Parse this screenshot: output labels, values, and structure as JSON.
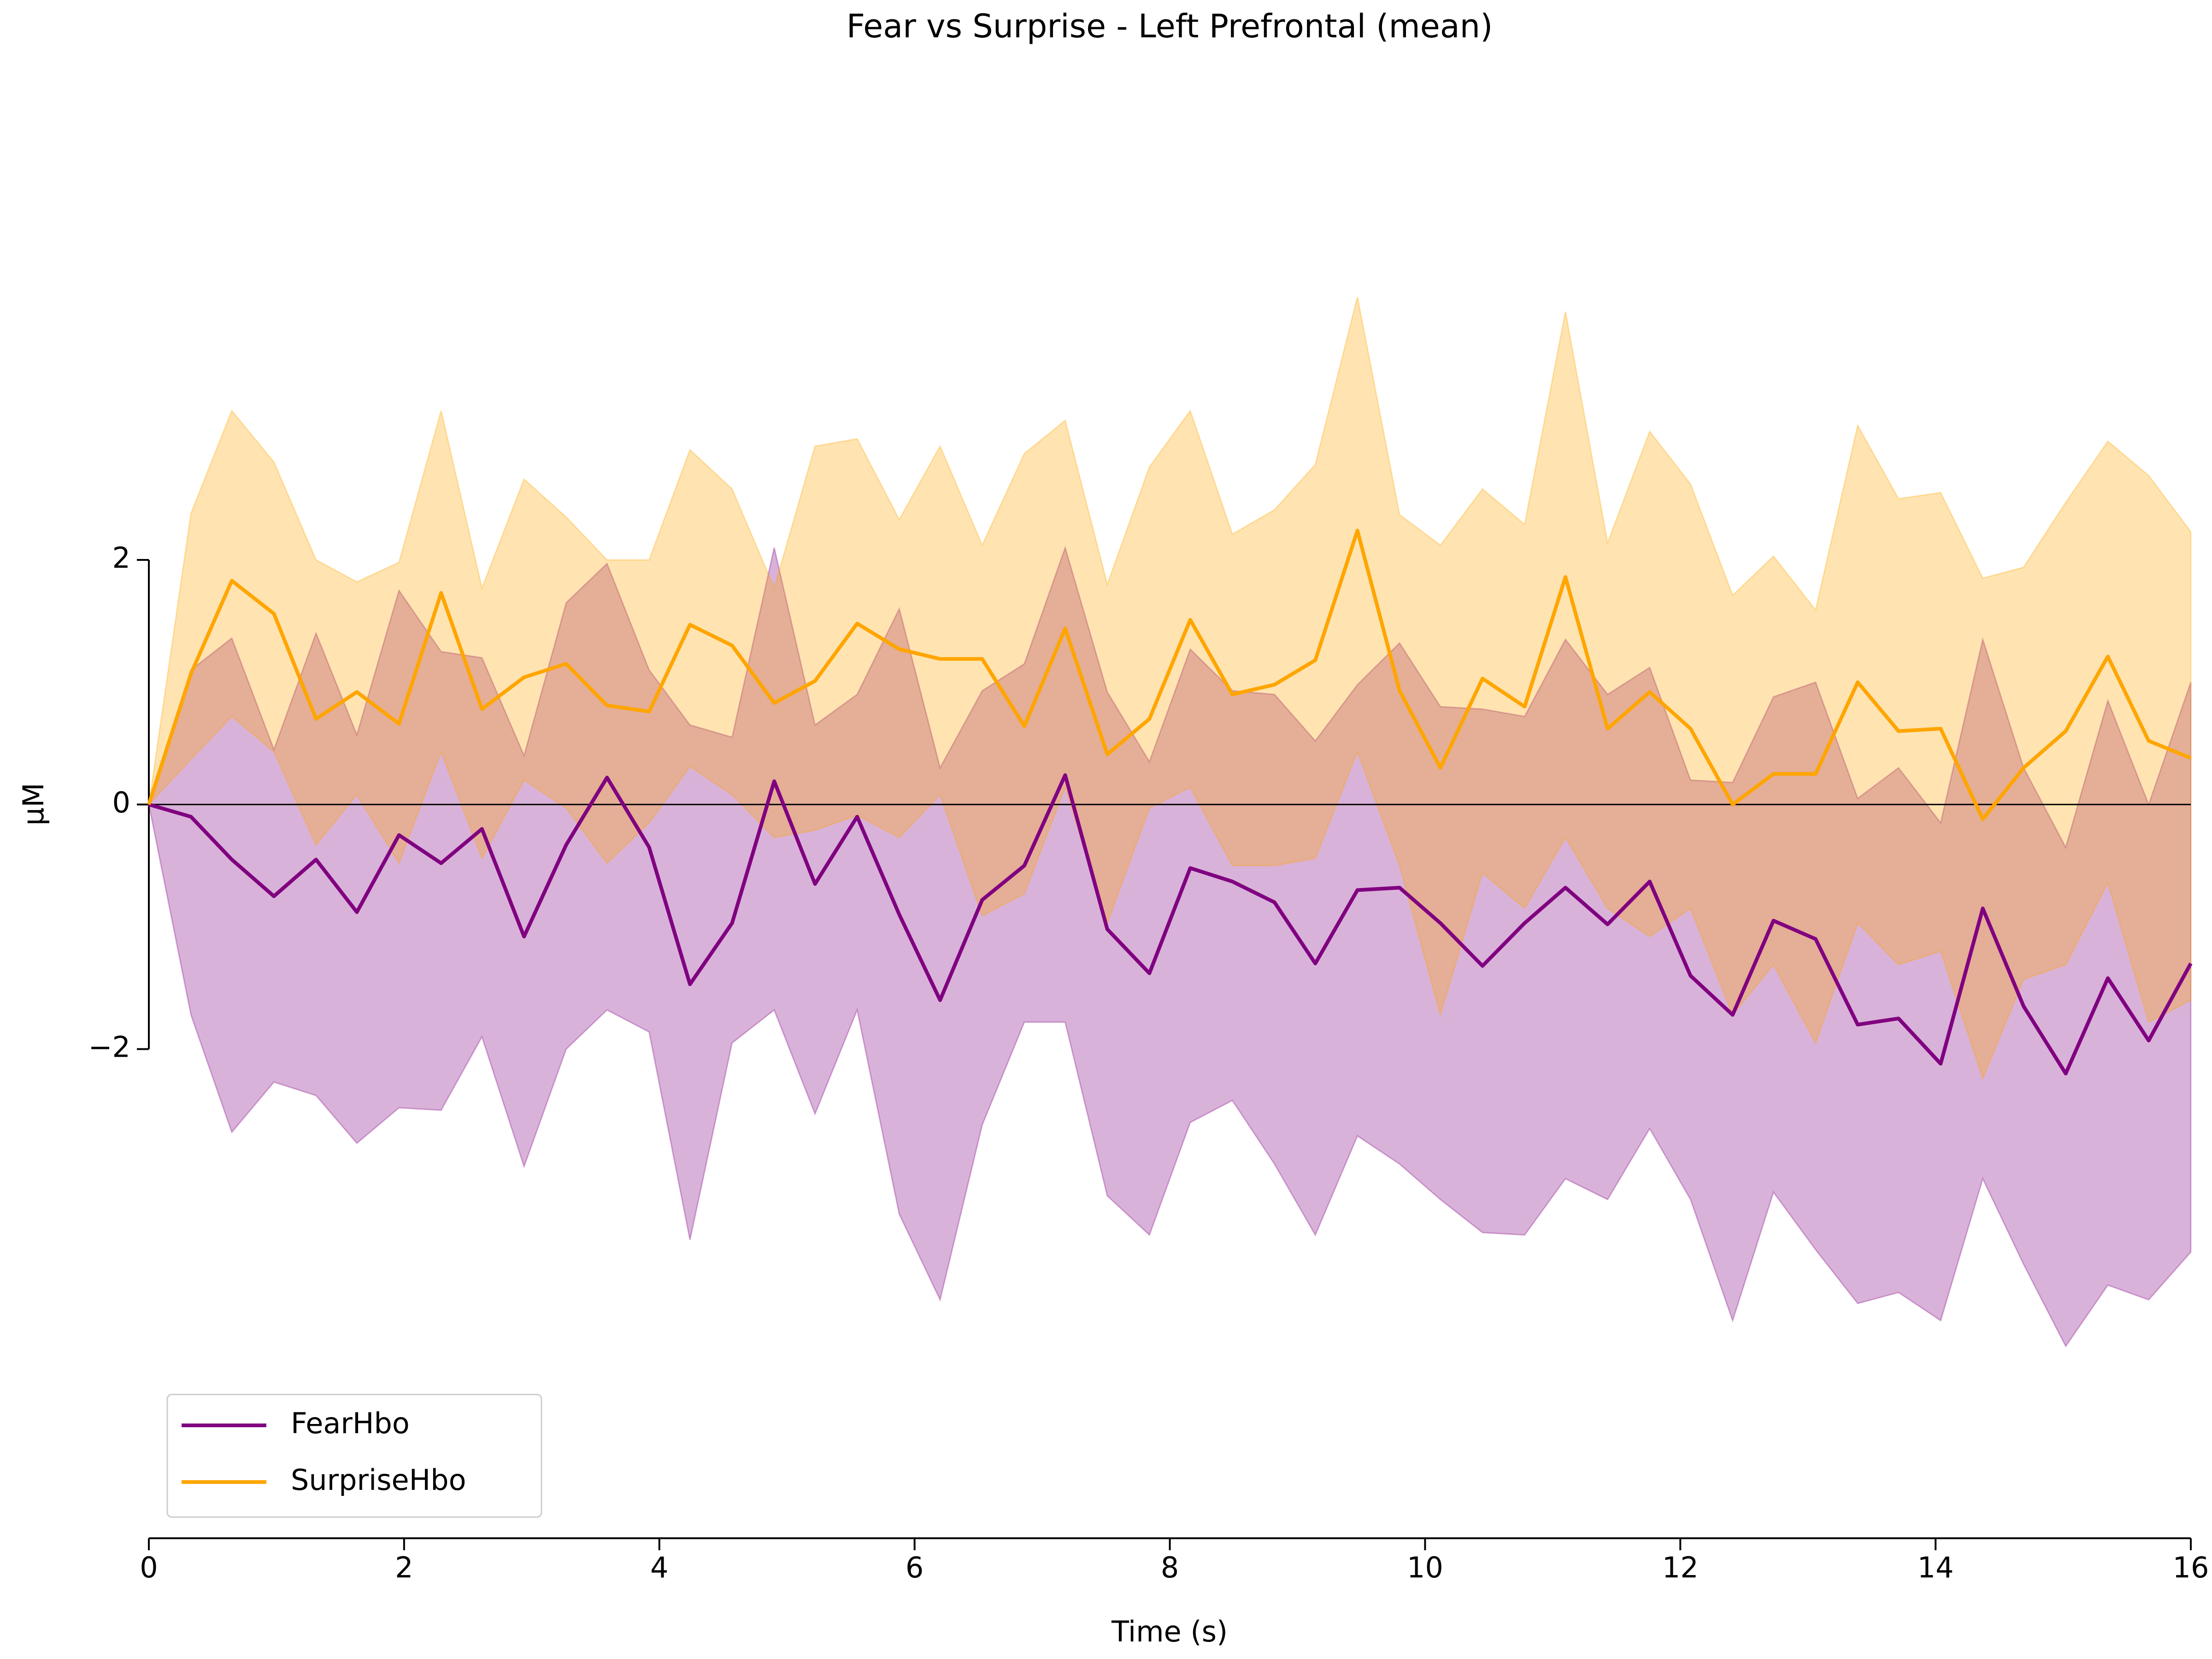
{
  "chart_data": {
    "type": "line",
    "title": "Fear vs Surprise - Left Prefrontal (mean)",
    "xlabel": "Time (s)",
    "ylabel": "μM",
    "x": [
      0,
      0.33,
      0.65,
      0.98,
      1.31,
      1.63,
      1.96,
      2.29,
      2.61,
      2.94,
      3.27,
      3.59,
      3.92,
      4.24,
      4.57,
      4.9,
      5.22,
      5.55,
      5.88,
      6.2,
      6.53,
      6.86,
      7.18,
      7.51,
      7.84,
      8.16,
      8.49,
      8.82,
      9.14,
      9.47,
      9.8,
      10.12,
      10.45,
      10.78,
      11.1,
      11.43,
      11.76,
      12.08,
      12.41,
      12.73,
      13.06,
      13.39,
      13.71,
      14.04,
      14.37,
      14.69,
      15.02,
      15.35,
      15.67,
      16.0
    ],
    "series": [
      {
        "name": "FearHbo",
        "color": "#800080",
        "values": [
          0,
          -0.1,
          -0.45,
          -0.75,
          -0.45,
          -0.88,
          -0.25,
          -0.48,
          -0.2,
          -1.08,
          -0.33,
          0.22,
          -0.35,
          -1.47,
          -0.97,
          0.19,
          -0.65,
          -0.1,
          -0.9,
          -1.6,
          -0.78,
          -0.5,
          0.24,
          -1.02,
          -1.38,
          -0.52,
          -0.63,
          -0.8,
          -1.3,
          -0.7,
          -0.68,
          -0.97,
          -1.32,
          -0.97,
          -0.68,
          -0.98,
          -0.63,
          -1.4,
          -1.72,
          -0.95,
          -1.1,
          -1.8,
          -1.75,
          -2.12,
          -0.85,
          -1.65,
          -2.2,
          -1.42,
          -1.93,
          -1.3
        ],
        "upper": [
          0,
          1.1,
          1.36,
          0.45,
          1.4,
          0.57,
          1.75,
          1.25,
          1.2,
          0.4,
          1.65,
          1.97,
          1.1,
          0.65,
          0.55,
          2.1,
          0.65,
          0.9,
          1.6,
          0.3,
          0.93,
          1.15,
          2.1,
          0.92,
          0.35,
          1.27,
          0.93,
          0.9,
          0.52,
          0.98,
          1.32,
          0.8,
          0.78,
          0.72,
          1.35,
          0.9,
          1.12,
          0.2,
          0.18,
          0.88,
          1.0,
          0.05,
          0.3,
          -0.15,
          1.35,
          0.3,
          -0.35,
          0.85,
          0.0,
          1.0
        ],
        "lower": [
          0,
          -1.72,
          -2.68,
          -2.27,
          -2.38,
          -2.77,
          -2.48,
          -2.5,
          -1.9,
          -2.96,
          -2.0,
          -1.68,
          -1.86,
          -3.56,
          -1.95,
          -1.68,
          -2.53,
          -1.68,
          -3.35,
          -4.05,
          -2.62,
          -1.78,
          -1.78,
          -3.2,
          -3.52,
          -2.6,
          -2.42,
          -2.94,
          -3.52,
          -2.71,
          -2.94,
          -3.23,
          -3.5,
          -3.52,
          -3.06,
          -3.23,
          -2.65,
          -3.23,
          -4.22,
          -3.17,
          -3.64,
          -4.08,
          -3.99,
          -4.22,
          -3.06,
          -3.76,
          -4.43,
          -3.93,
          -4.05,
          -3.66
        ]
      },
      {
        "name": "SurpriseHbo",
        "color": "#ffa500",
        "values": [
          0,
          1.07,
          1.83,
          1.56,
          0.7,
          0.92,
          0.66,
          1.73,
          0.78,
          1.04,
          1.15,
          0.81,
          0.76,
          1.47,
          1.3,
          0.83,
          1.01,
          1.48,
          1.27,
          1.19,
          1.19,
          0.64,
          1.44,
          0.41,
          0.7,
          1.51,
          0.9,
          0.98,
          1.18,
          2.24,
          0.93,
          0.3,
          1.03,
          0.8,
          1.86,
          0.62,
          0.92,
          0.62,
          0.0,
          0.25,
          0.25,
          1.0,
          0.6,
          0.62,
          -0.12,
          0.3,
          0.6,
          1.21,
          0.52,
          0.38
        ],
        "upper": [
          0,
          2.38,
          3.22,
          2.8,
          2.0,
          1.82,
          1.98,
          3.22,
          1.77,
          2.66,
          2.35,
          2.0,
          2.0,
          2.9,
          2.58,
          1.77,
          2.93,
          2.99,
          2.33,
          2.93,
          2.12,
          2.87,
          3.14,
          1.8,
          2.76,
          3.22,
          2.21,
          2.41,
          2.78,
          4.15,
          2.37,
          2.12,
          2.58,
          2.29,
          4.03,
          2.14,
          3.05,
          2.62,
          1.71,
          2.03,
          1.59,
          3.1,
          2.5,
          2.55,
          1.85,
          1.94,
          2.47,
          2.97,
          2.69,
          2.23
        ],
        "lower": [
          0,
          0.37,
          0.72,
          0.43,
          -0.33,
          0.08,
          -0.48,
          0.43,
          -0.44,
          0.2,
          -0.03,
          -0.48,
          -0.15,
          0.31,
          0.08,
          -0.27,
          -0.21,
          -0.09,
          -0.27,
          0.08,
          -0.91,
          -0.73,
          0.14,
          -0.97,
          -0.03,
          0.14,
          -0.5,
          -0.5,
          -0.44,
          0.43,
          -0.5,
          -1.72,
          -0.56,
          -0.85,
          -0.27,
          -0.85,
          -1.08,
          -0.85,
          -1.72,
          -1.31,
          -1.95,
          -0.97,
          -1.31,
          -1.2,
          -2.24,
          -1.43,
          -1.31,
          -0.64,
          -1.78,
          -1.6
        ]
      }
    ],
    "band_opacity": 0.3,
    "hline": 0,
    "xlim": [
      0,
      16
    ],
    "xticks": [
      0,
      2,
      4,
      6,
      8,
      10,
      12,
      14,
      16
    ],
    "ylim": [
      -6,
      5.9
    ],
    "yticks": [
      {
        "value": -2,
        "label": "−2"
      },
      0,
      2
    ],
    "legend": "lower left"
  }
}
